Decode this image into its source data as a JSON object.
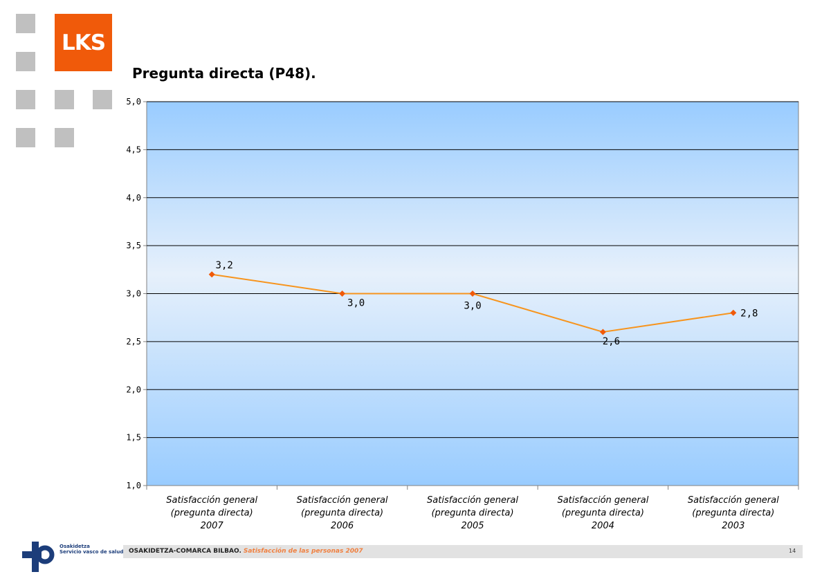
{
  "header": {
    "logo_text": "LKS",
    "title": "Pregunta directa (P48)."
  },
  "footer": {
    "org": "OSAKIDETZA-COMARCA BILBAO.",
    "subtitle": "Satisfacción de las personas 2007",
    "page": "14",
    "brand_line1": "Osakidetza",
    "brand_line2": "Servicio vasco de salud"
  },
  "colors": {
    "accent": "#f05a0a",
    "line": "#f7941d",
    "plot_edge": "#99ccff",
    "plot_mid": "#e6f0fb"
  },
  "chart_data": {
    "type": "line",
    "title": "",
    "xlabel": "",
    "ylabel": "",
    "ylim": [
      1.0,
      5.0
    ],
    "yticks": [
      "1,0",
      "1,5",
      "2,0",
      "2,5",
      "3,0",
      "3,5",
      "4,0",
      "4,5",
      "5,0"
    ],
    "ytick_values": [
      1.0,
      1.5,
      2.0,
      2.5,
      3.0,
      3.5,
      4.0,
      4.5,
      5.0
    ],
    "grid": true,
    "categories": [
      [
        "Satisfacción general",
        "(pregunta directa)",
        "2007"
      ],
      [
        "Satisfacción general",
        "(pregunta directa)",
        "2006"
      ],
      [
        "Satisfacción general",
        "(pregunta directa)",
        "2005"
      ],
      [
        "Satisfacción general",
        "(pregunta directa)",
        "2004"
      ],
      [
        "Satisfacción general",
        "(pregunta directa)",
        "2003"
      ]
    ],
    "values": [
      3.2,
      3.0,
      3.0,
      2.6,
      2.8
    ],
    "data_labels": [
      "3,2",
      "3,0",
      "3,0",
      "2,6",
      "2,8"
    ]
  }
}
